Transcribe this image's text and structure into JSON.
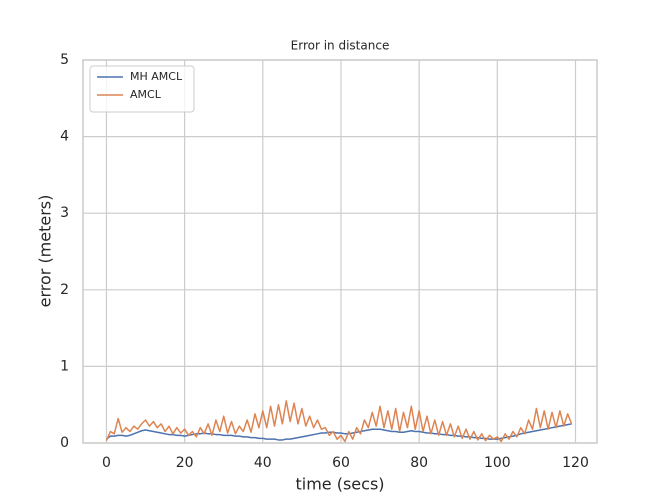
{
  "chart_data": {
    "type": "line",
    "title": "Error in distance",
    "xlabel": "time (secs)",
    "ylabel": "error (meters)",
    "x": [
      0,
      1,
      2,
      3,
      4,
      5,
      6,
      7,
      8,
      9,
      10,
      11,
      12,
      13,
      14,
      15,
      16,
      17,
      18,
      19,
      20,
      21,
      22,
      23,
      24,
      25,
      26,
      27,
      28,
      29,
      30,
      31,
      32,
      33,
      34,
      35,
      36,
      37,
      38,
      39,
      40,
      41,
      42,
      43,
      44,
      45,
      46,
      47,
      48,
      49,
      50,
      51,
      52,
      53,
      54,
      55,
      56,
      57,
      58,
      59,
      60,
      61,
      62,
      63,
      64,
      65,
      66,
      67,
      68,
      69,
      70,
      71,
      72,
      73,
      74,
      75,
      76,
      77,
      78,
      79,
      80,
      81,
      82,
      83,
      84,
      85,
      86,
      87,
      88,
      89,
      90,
      91,
      92,
      93,
      94,
      95,
      96,
      97,
      98,
      99,
      100,
      101,
      102,
      103,
      104,
      105,
      106,
      107,
      108,
      109,
      110,
      111,
      112,
      113,
      114,
      115,
      116,
      117,
      118,
      119
    ],
    "series": [
      {
        "name": "MH AMCL",
        "color": "#4c72b0",
        "values": [
          0.05,
          0.09,
          0.09,
          0.1,
          0.1,
          0.09,
          0.1,
          0.12,
          0.14,
          0.16,
          0.17,
          0.16,
          0.15,
          0.14,
          0.13,
          0.12,
          0.11,
          0.11,
          0.1,
          0.1,
          0.09,
          0.1,
          0.11,
          0.12,
          0.12,
          0.13,
          0.12,
          0.12,
          0.11,
          0.11,
          0.1,
          0.1,
          0.1,
          0.09,
          0.09,
          0.08,
          0.08,
          0.07,
          0.07,
          0.06,
          0.06,
          0.05,
          0.05,
          0.05,
          0.04,
          0.04,
          0.05,
          0.05,
          0.06,
          0.07,
          0.08,
          0.09,
          0.1,
          0.11,
          0.12,
          0.13,
          0.13,
          0.14,
          0.14,
          0.13,
          0.13,
          0.12,
          0.12,
          0.13,
          0.14,
          0.15,
          0.16,
          0.17,
          0.18,
          0.18,
          0.18,
          0.17,
          0.16,
          0.15,
          0.15,
          0.14,
          0.14,
          0.15,
          0.16,
          0.15,
          0.15,
          0.14,
          0.13,
          0.13,
          0.12,
          0.12,
          0.11,
          0.11,
          0.1,
          0.1,
          0.09,
          0.09,
          0.08,
          0.08,
          0.07,
          0.07,
          0.06,
          0.06,
          0.05,
          0.05,
          0.05,
          0.06,
          0.07,
          0.08,
          0.09,
          0.1,
          0.12,
          0.13,
          0.14,
          0.15,
          0.16,
          0.17,
          0.18,
          0.19,
          0.2,
          0.21,
          0.22,
          0.23,
          0.24,
          0.25
        ]
      },
      {
        "name": "AMCL",
        "color": "#dd8452",
        "values": [
          0.03,
          0.15,
          0.12,
          0.32,
          0.14,
          0.2,
          0.15,
          0.22,
          0.18,
          0.25,
          0.3,
          0.22,
          0.28,
          0.2,
          0.25,
          0.15,
          0.22,
          0.12,
          0.2,
          0.13,
          0.18,
          0.1,
          0.15,
          0.08,
          0.2,
          0.12,
          0.25,
          0.1,
          0.3,
          0.15,
          0.35,
          0.13,
          0.28,
          0.12,
          0.22,
          0.15,
          0.3,
          0.14,
          0.38,
          0.2,
          0.42,
          0.2,
          0.48,
          0.22,
          0.5,
          0.25,
          0.55,
          0.28,
          0.52,
          0.25,
          0.45,
          0.22,
          0.35,
          0.2,
          0.3,
          0.18,
          0.2,
          0.1,
          0.15,
          0.05,
          0.1,
          0.02,
          0.15,
          0.05,
          0.2,
          0.12,
          0.3,
          0.2,
          0.4,
          0.22,
          0.48,
          0.2,
          0.42,
          0.18,
          0.45,
          0.15,
          0.4,
          0.2,
          0.48,
          0.18,
          0.42,
          0.15,
          0.35,
          0.12,
          0.3,
          0.1,
          0.28,
          0.1,
          0.25,
          0.08,
          0.22,
          0.06,
          0.18,
          0.05,
          0.15,
          0.04,
          0.12,
          0.03,
          0.1,
          0.05,
          0.08,
          0.02,
          0.12,
          0.05,
          0.15,
          0.08,
          0.2,
          0.12,
          0.3,
          0.18,
          0.45,
          0.2,
          0.42,
          0.18,
          0.4,
          0.2,
          0.42,
          0.22,
          0.38,
          0.25
        ]
      }
    ],
    "xlim": [
      -6,
      125.5
    ],
    "ylim": [
      0,
      5
    ],
    "xticks": [
      0,
      20,
      40,
      60,
      80,
      100,
      120
    ],
    "yticks": [
      0,
      1,
      2,
      3,
      4,
      5
    ],
    "grid": true,
    "legend": "upper left"
  }
}
